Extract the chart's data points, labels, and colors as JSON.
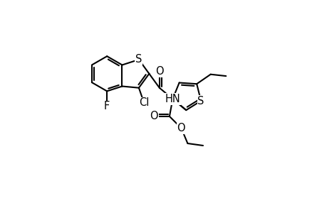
{
  "background_color": "#ffffff",
  "line_color": "#000000",
  "line_width": 1.5,
  "font_size": 10.5,
  "figsize": [
    4.6,
    3.0
  ],
  "dpi": 100,
  "xlim": [
    0,
    10
  ],
  "ylim": [
    0,
    10
  ]
}
